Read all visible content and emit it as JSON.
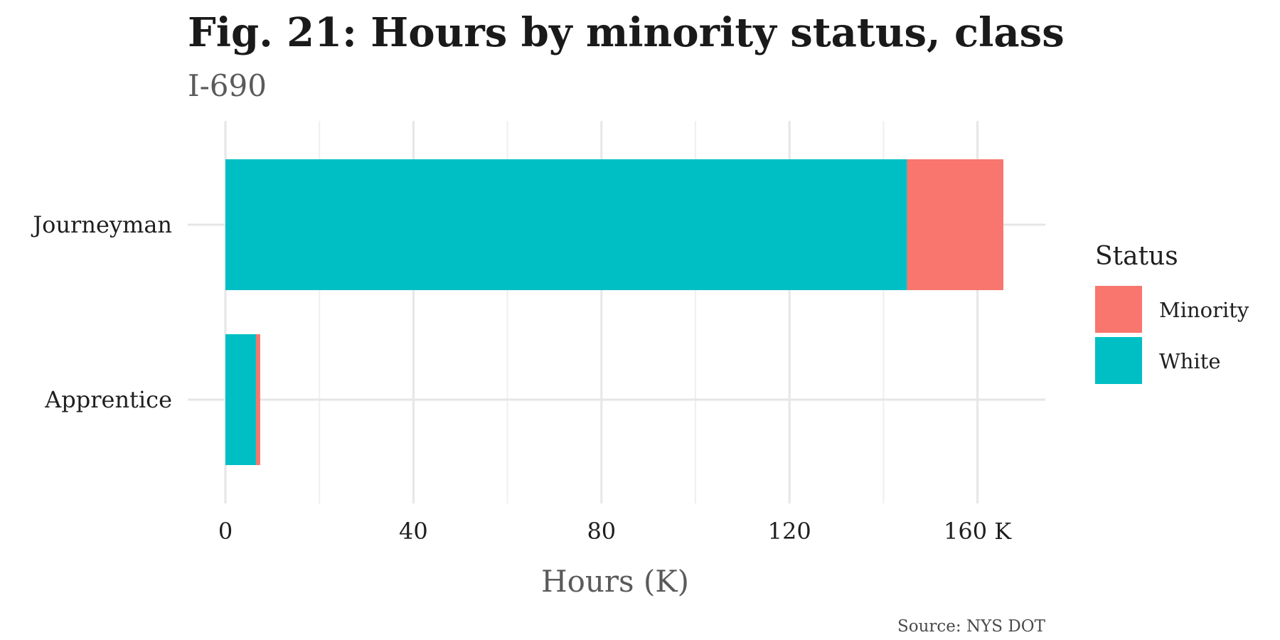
{
  "chart_data": {
    "type": "bar",
    "orientation": "horizontal",
    "stacked": true,
    "title": "Fig. 21: Hours by minority status, class",
    "subtitle": "I-690",
    "xlabel": "Hours (K)",
    "ylabel": "",
    "caption": "Source: NYS DOT",
    "categories": [
      "Journeyman",
      "Apprentice"
    ],
    "series": [
      {
        "name": "White",
        "color": "#00BFC4",
        "values": [
          145,
          6.5
        ]
      },
      {
        "name": "Minority",
        "color": "#F8766D",
        "values": [
          20.5,
          0.9
        ]
      }
    ],
    "xlim": [
      0,
      174
    ],
    "x_ticks": [
      0,
      40,
      80,
      120,
      160
    ],
    "x_tick_labels": [
      "0",
      "40",
      "80",
      "120",
      "160 K"
    ],
    "grid": true,
    "legend": {
      "title": "Status",
      "position": "right",
      "entries": [
        {
          "label": "Minority",
          "color": "#F8766D"
        },
        {
          "label": "White",
          "color": "#00BFC4"
        }
      ]
    }
  }
}
